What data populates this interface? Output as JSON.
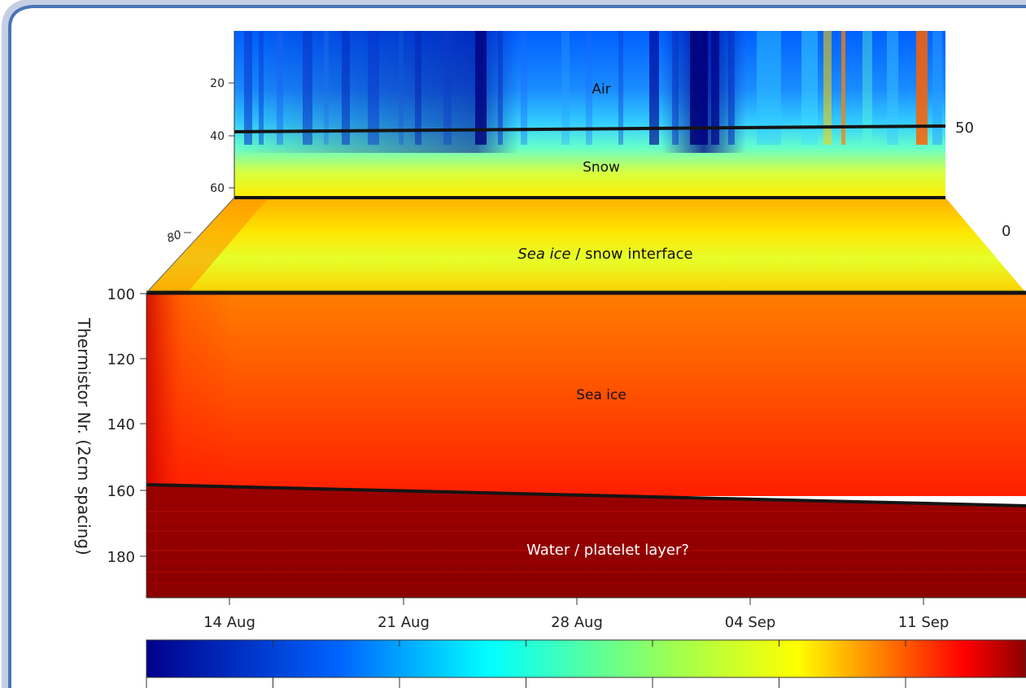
{
  "chart_data": {
    "type": "heatmap",
    "title": "",
    "ylabel": "Thermistor Nr. (2cm spacing)",
    "xlabel": "",
    "x_ticks": [
      "14 Aug",
      "21 Aug",
      "28 Aug",
      "04 Sep",
      "11 Sep"
    ],
    "upper_panel": {
      "y_ticks": [
        "20",
        "40",
        "60"
      ],
      "depth_tick": "80",
      "right_labels": [
        "50",
        "0"
      ],
      "regions": [
        "Air",
        "Snow"
      ]
    },
    "lower_panel": {
      "y_ticks": [
        "100",
        "120",
        "140",
        "160",
        "180"
      ],
      "interface_label_italic": "Sea ice",
      "interface_label_rest": " / snow interface",
      "regions": [
        "Sea ice",
        "Water / platelet layer?"
      ]
    },
    "colorbar": {
      "colors": [
        "#00008b",
        "#0064ff",
        "#00ffff",
        "#ffff00",
        "#ff0000",
        "#8b0000"
      ]
    },
    "boundaries": {
      "air_snow": [
        39,
        37
      ],
      "snow_ice_surface": [
        63,
        63
      ],
      "ice_top": [
        100,
        100
      ],
      "ice_water": [
        158,
        165
      ]
    }
  },
  "colors": {
    "frame": "#4a74b8",
    "frame_shadow": "#c5cfe3",
    "boundary_line": "#141414"
  }
}
